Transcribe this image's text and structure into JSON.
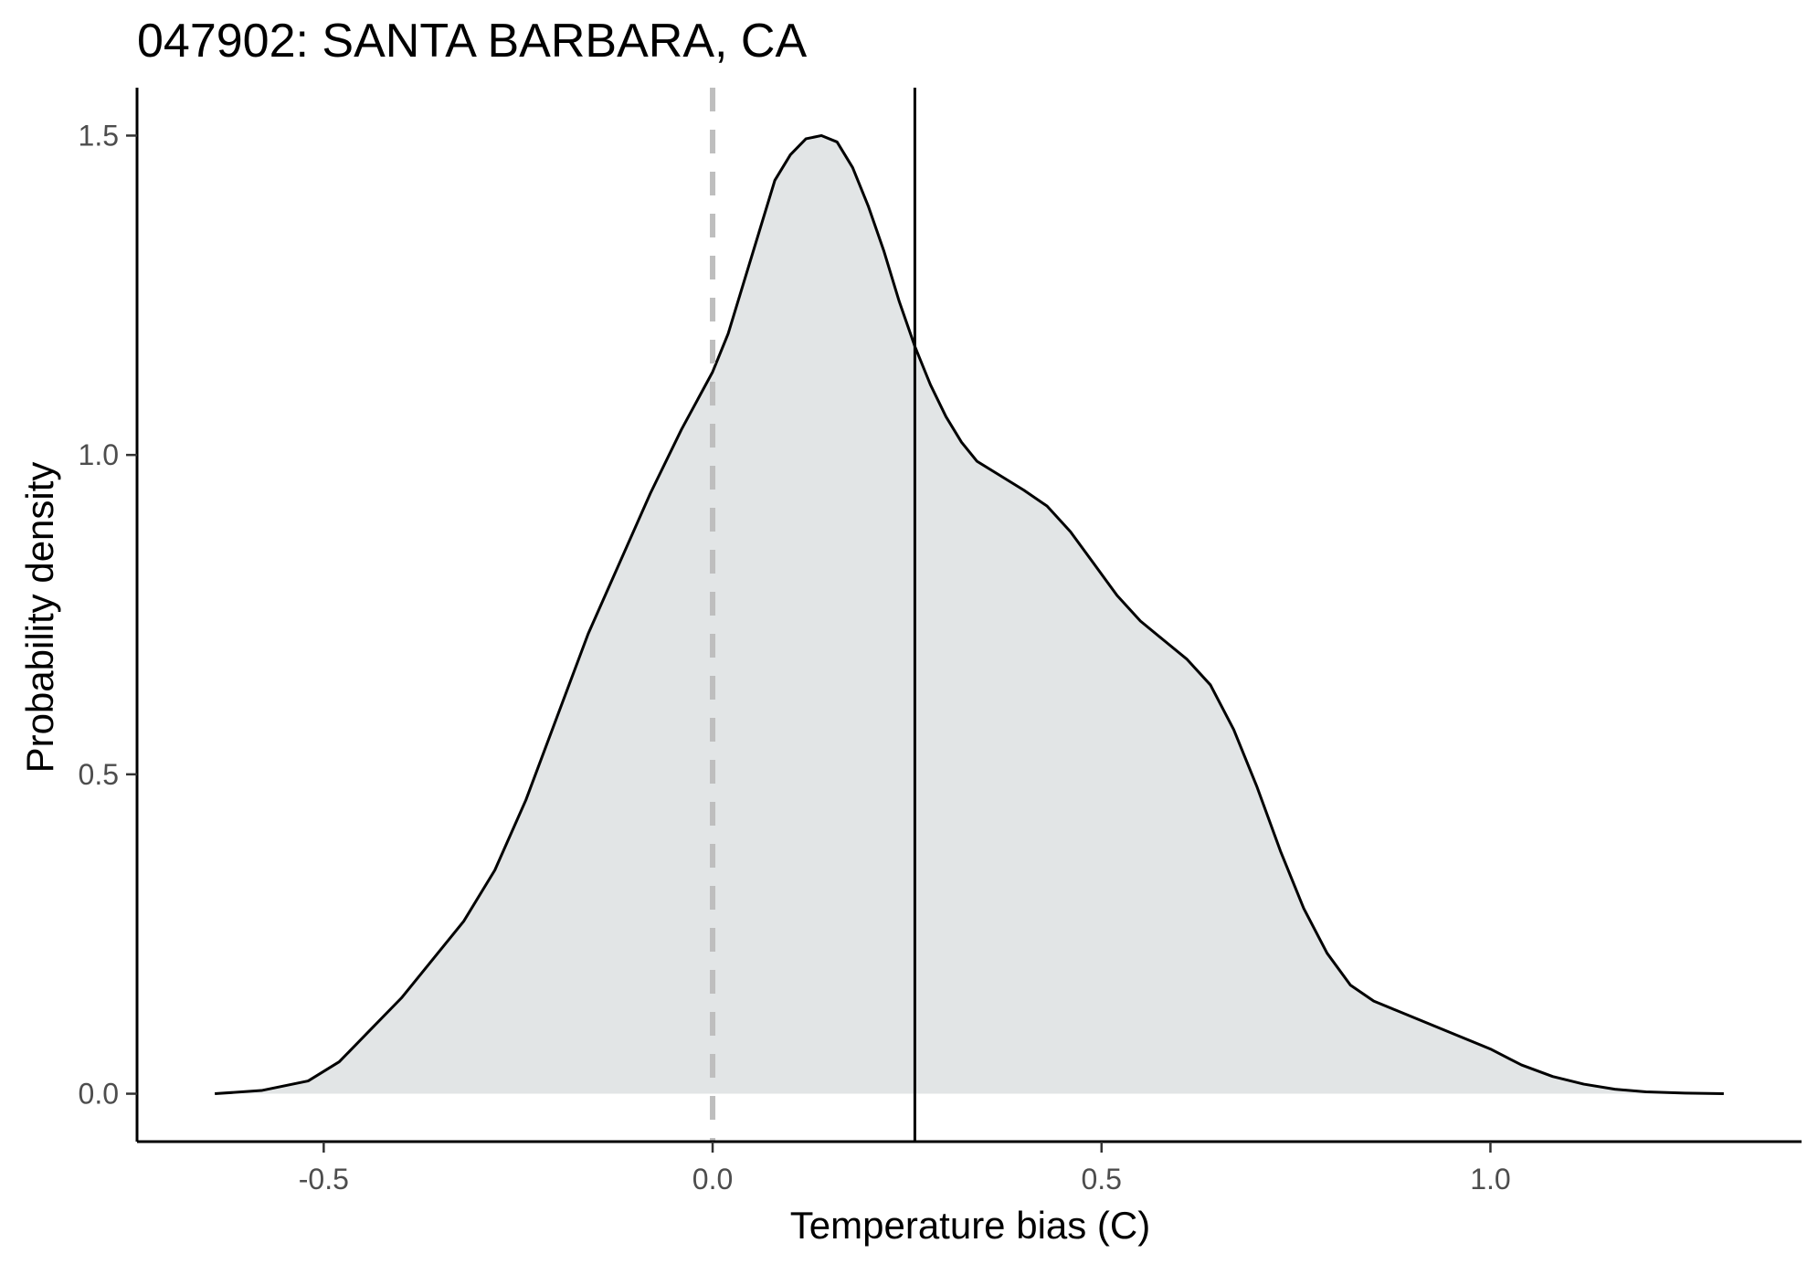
{
  "chart_data": {
    "type": "area",
    "title": "047902: SANTA BARBARA, CA",
    "xlabel": "Temperature bias (C)",
    "ylabel": "Probability density",
    "xlim": [
      -0.74,
      1.4
    ],
    "ylim": [
      -0.075,
      1.575
    ],
    "x_ticks": [
      -0.5,
      0.0,
      0.5,
      1.0
    ],
    "x_tick_labels": [
      "-0.5",
      "0.0",
      "0.5",
      "1.0"
    ],
    "y_ticks": [
      0.0,
      0.5,
      1.0,
      1.5
    ],
    "y_tick_labels": [
      "0.0",
      "0.5",
      "1.0",
      "1.5"
    ],
    "grid": false,
    "legend": "none",
    "series": [
      {
        "values_x": [
          -0.64,
          -0.58,
          -0.52,
          -0.48,
          -0.44,
          -0.4,
          -0.36,
          -0.32,
          -0.28,
          -0.24,
          -0.2,
          -0.16,
          -0.12,
          -0.08,
          -0.04,
          0.0,
          0.02,
          0.04,
          0.06,
          0.08,
          0.1,
          0.12,
          0.14,
          0.16,
          0.18,
          0.2,
          0.22,
          0.24,
          0.26,
          0.28,
          0.3,
          0.32,
          0.34,
          0.36,
          0.38,
          0.4,
          0.43,
          0.46,
          0.49,
          0.52,
          0.55,
          0.58,
          0.61,
          0.64,
          0.67,
          0.7,
          0.73,
          0.76,
          0.79,
          0.82,
          0.85,
          0.88,
          0.92,
          0.96,
          1.0,
          1.04,
          1.08,
          1.12,
          1.16,
          1.2,
          1.25,
          1.3
        ],
        "values_y": [
          0.0,
          0.005,
          0.02,
          0.05,
          0.1,
          0.15,
          0.21,
          0.27,
          0.35,
          0.46,
          0.59,
          0.72,
          0.83,
          0.94,
          1.04,
          1.13,
          1.19,
          1.27,
          1.35,
          1.43,
          1.47,
          1.495,
          1.5,
          1.49,
          1.45,
          1.39,
          1.32,
          1.24,
          1.17,
          1.11,
          1.06,
          1.02,
          0.99,
          0.975,
          0.96,
          0.945,
          0.92,
          0.88,
          0.83,
          0.78,
          0.74,
          0.71,
          0.68,
          0.64,
          0.57,
          0.48,
          0.38,
          0.29,
          0.22,
          0.17,
          0.145,
          0.13,
          0.11,
          0.09,
          0.07,
          0.045,
          0.027,
          0.015,
          0.007,
          0.003,
          0.001,
          0.0
        ]
      }
    ],
    "colors": {
      "fill": "#e2e5e6",
      "line": "#000000",
      "reference_line": "#000000",
      "zero_line": "#bebebe",
      "axis": "#000000",
      "tick_label": "#4d4d4d"
    },
    "reference_lines": [
      {
        "x": 0.0,
        "style": "dashed",
        "color": "#bebebe"
      },
      {
        "x": 0.26,
        "style": "solid",
        "color": "#000000"
      }
    ]
  }
}
